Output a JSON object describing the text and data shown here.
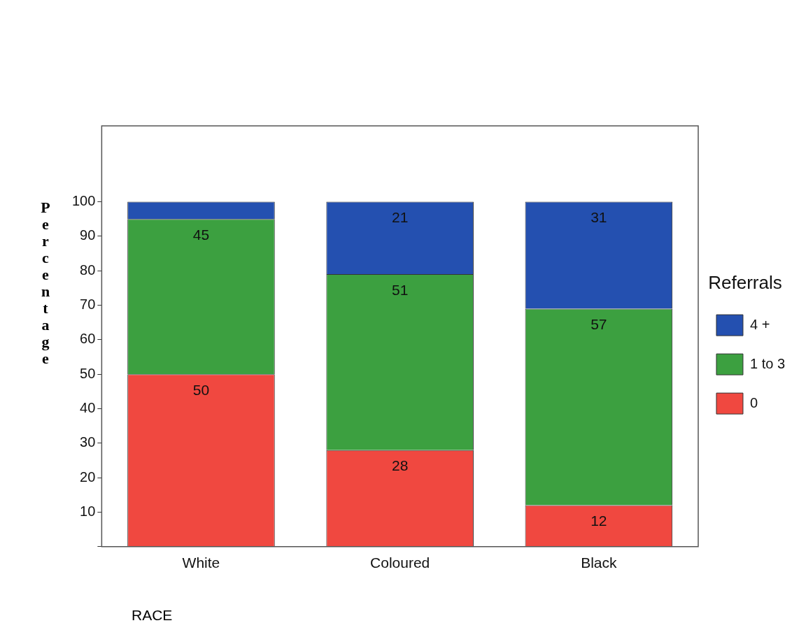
{
  "chart_data": {
    "type": "bar",
    "stacked": true,
    "xlabel": "RACE",
    "ylabel": "Percentage",
    "legend_title": "Referrals",
    "legend": "right",
    "grid": false,
    "categories": [
      "White",
      "Coloured",
      "Black"
    ],
    "ylim": [
      0,
      122
    ],
    "yticks": [
      {
        "value": 0,
        "label": null
      },
      10,
      20,
      30,
      40,
      50,
      60,
      70,
      80,
      90,
      100
    ],
    "series": [
      {
        "name": "0",
        "color": "#f04840",
        "values": [
          50,
          28,
          12
        ],
        "value_labels": [
          "50",
          "28",
          "12"
        ]
      },
      {
        "name": "1 to 3",
        "color": "#3ca040",
        "values": [
          45,
          51,
          57
        ],
        "value_labels": [
          "45",
          "51",
          "57"
        ]
      },
      {
        "name": "4 +",
        "color": "#2450b0",
        "values": [
          5,
          21,
          31
        ],
        "value_labels": [
          null,
          "21",
          "31"
        ]
      }
    ]
  }
}
